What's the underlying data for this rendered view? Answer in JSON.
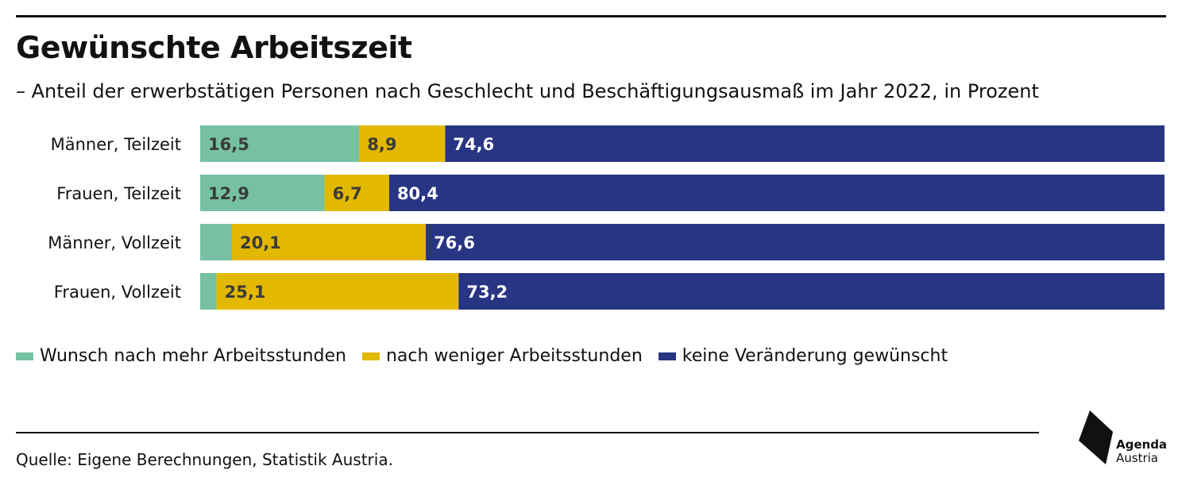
{
  "title": "Gewünschte Arbeitszeit",
  "subtitle": "– Anteil der erwerbstätigen Personen nach Geschlecht und Beschäftigungsausmaß im Jahr 2022, in Prozent",
  "source": "Quelle: Eigene Berechnungen, Statistik Austria.",
  "logo": {
    "line1": "Agenda",
    "line2": "Austria"
  },
  "colors": {
    "more": "#76c1a3",
    "less": "#e2b800",
    "none": "#283583"
  },
  "chart_data": {
    "type": "bar",
    "orientation": "horizontal",
    "stacked": true,
    "title": "Gewünschte Arbeitszeit",
    "xlim": [
      0,
      100
    ],
    "legend_position": "bottom-left",
    "categories": [
      "Männer, Teilzeit",
      "Frauen, Teilzeit",
      "Männer, Vollzeit",
      "Frauen, Vollzeit"
    ],
    "series": [
      {
        "name": "Wunsch nach mehr Arbeitsstunden",
        "values": [
          16.5,
          12.9,
          3.3,
          1.7
        ],
        "labels": [
          "16,5",
          "12,9",
          "",
          ""
        ],
        "color": "#76c1a3",
        "label_color": "#3b3b3b"
      },
      {
        "name": "nach weniger Arbeitsstunden",
        "values": [
          8.9,
          6.7,
          20.1,
          25.1
        ],
        "labels": [
          "8,9",
          "6,7",
          "20,1",
          "25,1"
        ],
        "color": "#e2b800",
        "label_color": "#3b3b3b"
      },
      {
        "name": "keine Veränderung gewünscht",
        "values": [
          74.6,
          80.4,
          76.6,
          73.2
        ],
        "labels": [
          "74,6",
          "80,4",
          "76,6",
          "73,2"
        ],
        "color": "#283583",
        "label_color": "#ffffff"
      }
    ]
  }
}
